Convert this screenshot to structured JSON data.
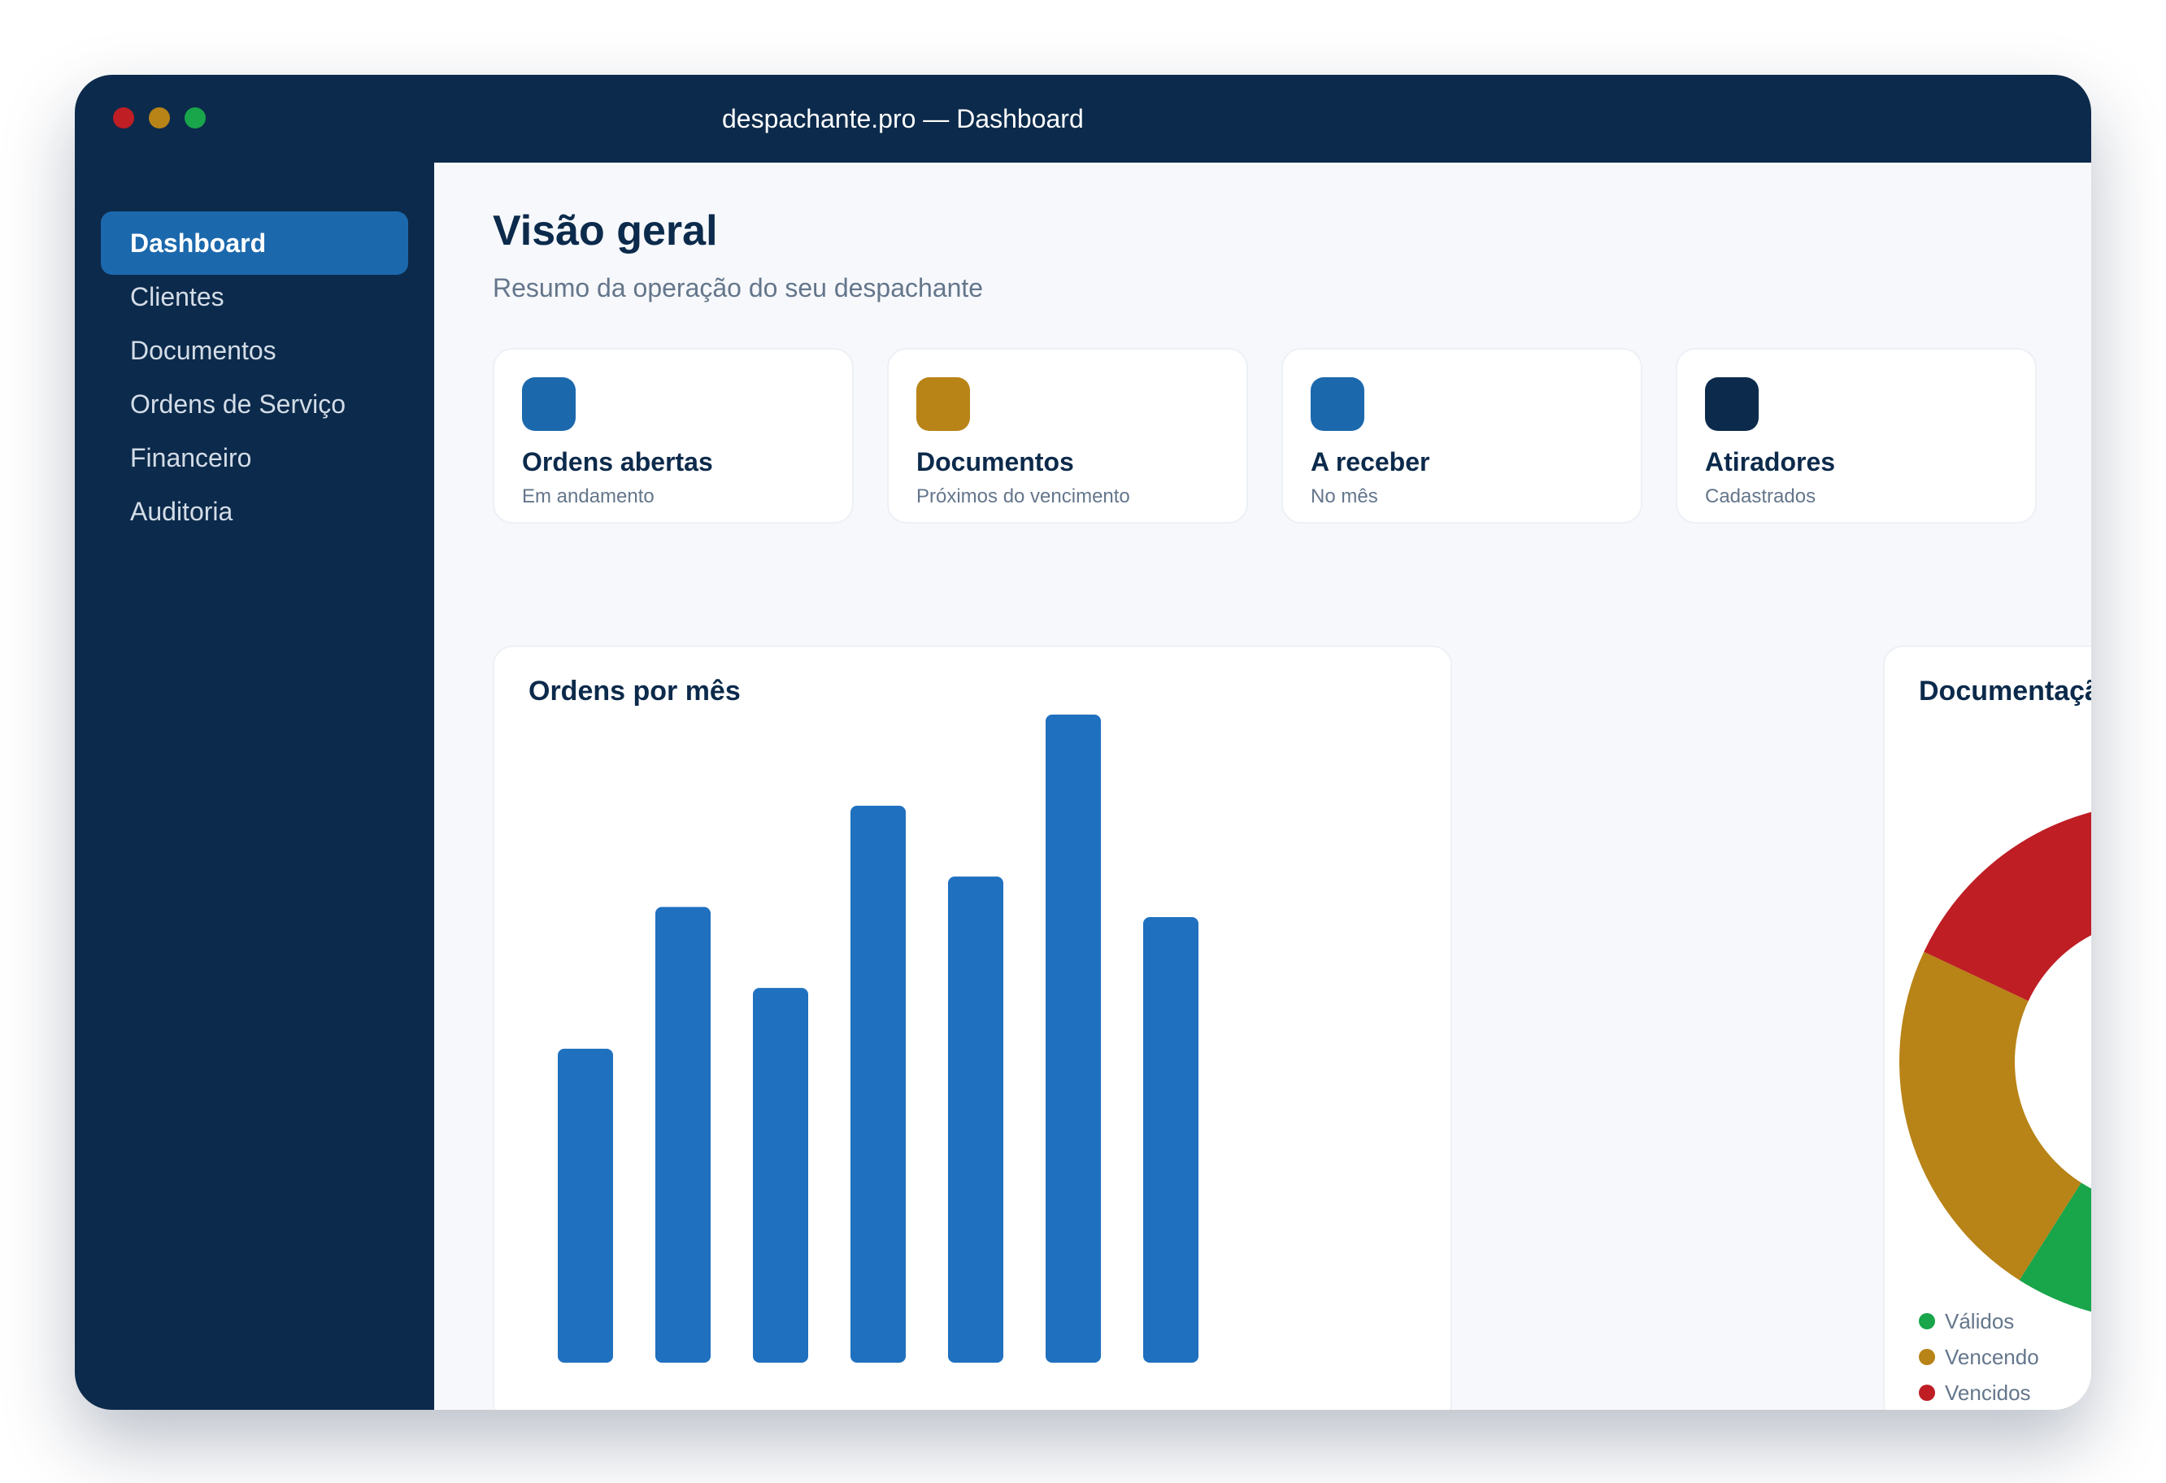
{
  "window": {
    "title": "despachante.pro — Dashboard",
    "traffic_lights": [
      "#be1e24",
      "#b88317",
      "#19a54a"
    ]
  },
  "colors": {
    "sidebar_bg": "#0c2a4b",
    "accent": "#1c68ad",
    "bar": "#1f70bf",
    "valid": "#19a54a",
    "due": "#b88317",
    "expired": "#be1e24"
  },
  "sidebar": {
    "items": [
      {
        "label": "Dashboard",
        "active": true
      },
      {
        "label": "Clientes",
        "active": false
      },
      {
        "label": "Documentos",
        "active": false
      },
      {
        "label": "Ordens de Serviço",
        "active": false
      },
      {
        "label": "Financeiro",
        "active": false
      },
      {
        "label": "Auditoria",
        "active": false
      }
    ]
  },
  "header": {
    "title": "Visão geral",
    "subtitle": "Resumo da operação do seu despachante"
  },
  "stats": [
    {
      "label": "Ordens abertas",
      "sub": "Em andamento",
      "icon_color": "#1c68ad"
    },
    {
      "label": "Documentos",
      "sub": "Próximos do vencimento",
      "icon_color": "#b88317"
    },
    {
      "label": "A receber",
      "sub": "No mês",
      "icon_color": "#1c68ad"
    },
    {
      "label": "Atiradores",
      "sub": "Cadastrados",
      "icon_color": "#0c2a4b"
    }
  ],
  "chart_data": [
    {
      "type": "bar",
      "title": "Ordens por mês",
      "values": [
        31,
        45,
        37,
        55,
        48,
        64,
        44
      ],
      "ylim": [
        0,
        66
      ],
      "grid": false,
      "axes_labels_visible": false
    },
    {
      "type": "pie",
      "style": "donut",
      "title": "Documentação",
      "labels": [
        "Válidos",
        "Vencendo",
        "Vencidos"
      ],
      "values": [
        59,
        23,
        18
      ],
      "colors": [
        "#19a54a",
        "#b88317",
        "#be1e24"
      ],
      "legend": "bottom-left"
    }
  ]
}
